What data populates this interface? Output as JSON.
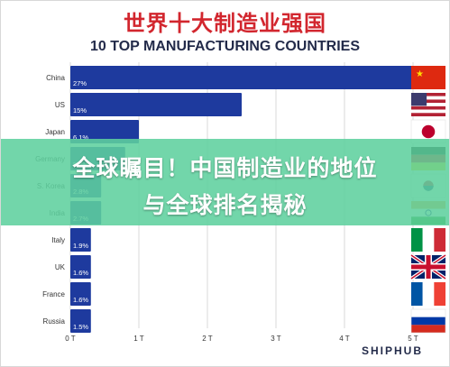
{
  "title_cn": "世界十大制造业强国",
  "title_en": "10 TOP MANUFACTURING COUNTRIES",
  "overlay_line1": "全球瞩目！中国制造业的地位",
  "overlay_line2": "与全球排名揭秘",
  "brand": "SHIPHUB",
  "colors": {
    "bar": "#1e3a9e",
    "title_cn": "#d2262e",
    "overlay": "#5fd09e"
  },
  "chart_data": {
    "type": "bar",
    "orientation": "horizontal",
    "title": "10 TOP MANUFACTURING COUNTRIES",
    "categories": [
      "China",
      "US",
      "Japan",
      "Germany",
      "S. Korea",
      "India",
      "Italy",
      "UK",
      "France",
      "Russia"
    ],
    "values": [
      5.0,
      2.5,
      1.0,
      0.8,
      0.45,
      0.45,
      0.3,
      0.3,
      0.3,
      0.3
    ],
    "value_labels": [
      "27%",
      "15%",
      "6.1%",
      "5.3%",
      "2.8%",
      "2.7%",
      "1.9%",
      "1.6%",
      "1.6%",
      "1.5%"
    ],
    "flag_icons": [
      "china-flag-icon",
      "us-flag-icon",
      "japan-flag-icon",
      "germany-flag-icon",
      "south-korea-flag-icon",
      "india-flag-icon",
      "italy-flag-icon",
      "uk-flag-icon",
      "france-flag-icon",
      "russia-flag-icon"
    ],
    "xticks": [
      "0 T",
      "1 T",
      "2 T",
      "3 T",
      "4 T",
      "5 T"
    ],
    "xlim": [
      0,
      5
    ],
    "grid": true
  }
}
